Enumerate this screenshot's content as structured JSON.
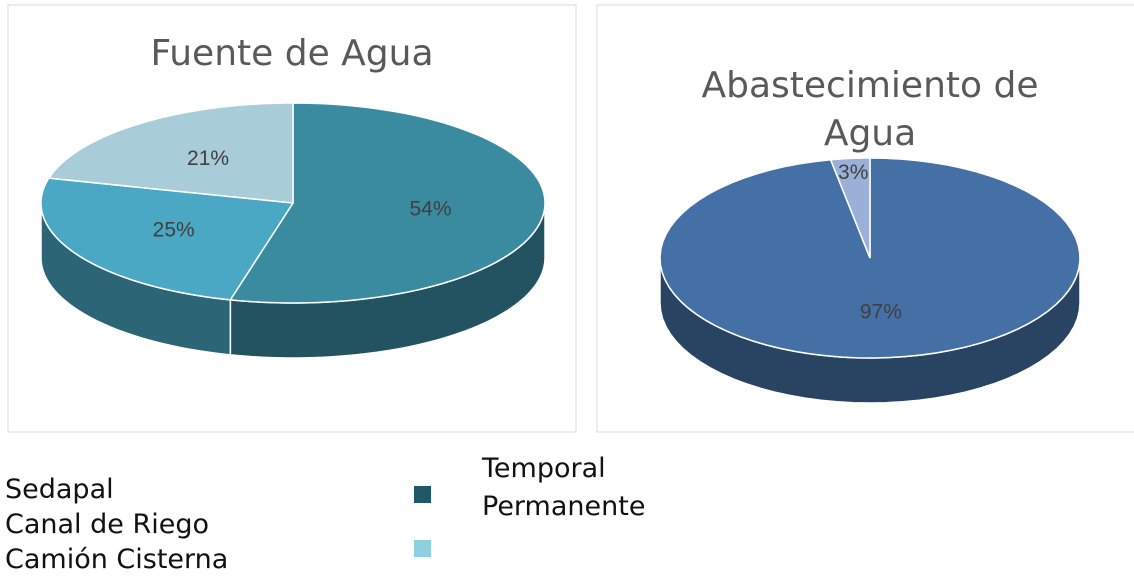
{
  "chart_data": [
    {
      "type": "pie",
      "title": "Fuente de Agua",
      "categories": [
        "Sedapal",
        "Canal de Riego",
        "Camión Cisterna"
      ],
      "values": [
        54,
        25,
        21
      ],
      "value_labels": [
        "54%",
        "25%",
        "21%"
      ],
      "colors": [
        "#3a8ba0",
        "#4aa8c4",
        "#a8ccd8"
      ]
    },
    {
      "type": "pie",
      "title": "Abastecimiento de Agua",
      "categories": [
        "Temporal",
        "Permanente"
      ],
      "values": [
        97,
        3
      ],
      "value_labels": [
        "97%",
        "3%"
      ],
      "colors": [
        "#4570a5",
        "#9ab0d8"
      ]
    }
  ]
}
